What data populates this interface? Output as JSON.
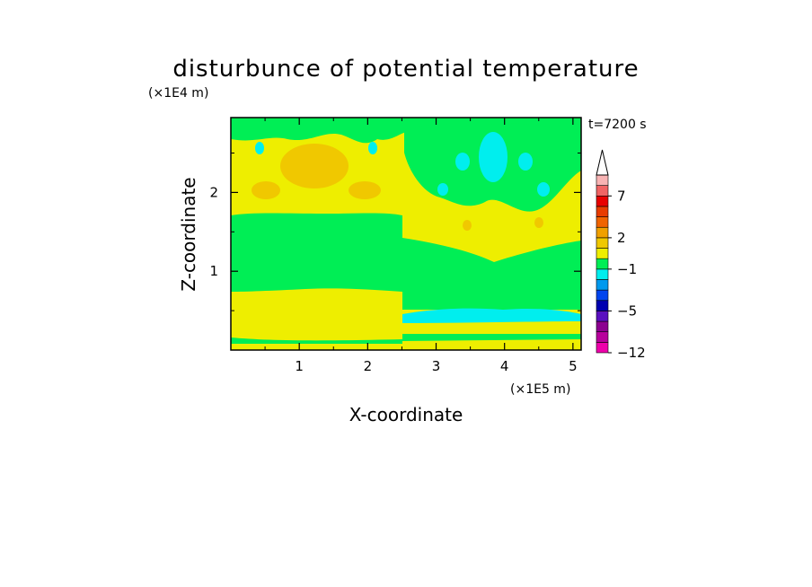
{
  "chart_data": {
    "type": "heatmap",
    "title": "disturbunce of potential temperature",
    "xlabel": "X-coordinate",
    "ylabel": "Z-coordinate",
    "x_unit_label": "(×1E5 m)",
    "y_unit_label": "(×1E4 m)",
    "time_label": "t=7200 s",
    "xlim": [
      0,
      5.12
    ],
    "ylim": [
      0,
      2.95
    ],
    "x_ticks": [
      1,
      2,
      3,
      4,
      5
    ],
    "y_ticks": [
      1,
      2
    ],
    "colorbar": {
      "levels": [
        -12,
        -10,
        -8,
        -6,
        -5,
        -4,
        -3,
        -2,
        -1,
        0,
        1,
        2,
        3,
        4,
        6,
        7,
        8,
        10
      ],
      "tick_labels": [
        {
          "value": -12,
          "label": "−12"
        },
        {
          "value": -5,
          "label": "−5"
        },
        {
          "value": -1,
          "label": "−1"
        },
        {
          "value": 2,
          "label": "2"
        },
        {
          "value": 7,
          "label": "7"
        }
      ],
      "colors": [
        "#ee00aa",
        "#b8009c",
        "#8c0090",
        "#5a10c0",
        "#0000b0",
        "#0044ee",
        "#0099ee",
        "#00eeee",
        "#00ee55",
        "#eeee00",
        "#f0c800",
        "#f0a000",
        "#f06400",
        "#e83c00",
        "#e80000",
        "#f06464",
        "#f8b4b4"
      ],
      "extend": "max"
    },
    "regions": [
      {
        "value": 0.5,
        "x": [
          0,
          5.12
        ],
        "z": [
          0,
          2.95
        ]
      },
      {
        "value": -0.5,
        "x": [
          0,
          2.5
        ],
        "z": [
          1.7,
          0.8
        ]
      },
      {
        "value": -0.5,
        "x": [
          2.5,
          5.12
        ],
        "z": [
          1.1,
          0.45
        ]
      },
      {
        "value": -0.5,
        "x": [
          0,
          2.5
        ],
        "z": [
          0.1,
          0.15
        ]
      },
      {
        "value": -0.5,
        "x": [
          2.5,
          5.12
        ],
        "z": [
          0.1,
          0.28
        ]
      },
      {
        "value": -1.5,
        "x": [
          2.5,
          5.12
        ],
        "z": [
          0.35,
          0.48
        ]
      },
      {
        "value": 1.5,
        "x": [
          0.3,
          2.3
        ],
        "z": [
          2.1,
          2.55
        ]
      },
      {
        "value": -0.5,
        "x": [
          0,
          5.12
        ],
        "z": [
          2.55,
          2.95
        ]
      },
      {
        "value": -0.5,
        "x": [
          2.6,
          5.12
        ],
        "z": [
          1.95,
          2.55
        ]
      },
      {
        "value": -1.5,
        "x": [
          3.4,
          4.4
        ],
        "z": [
          2.1,
          2.55
        ]
      }
    ]
  }
}
